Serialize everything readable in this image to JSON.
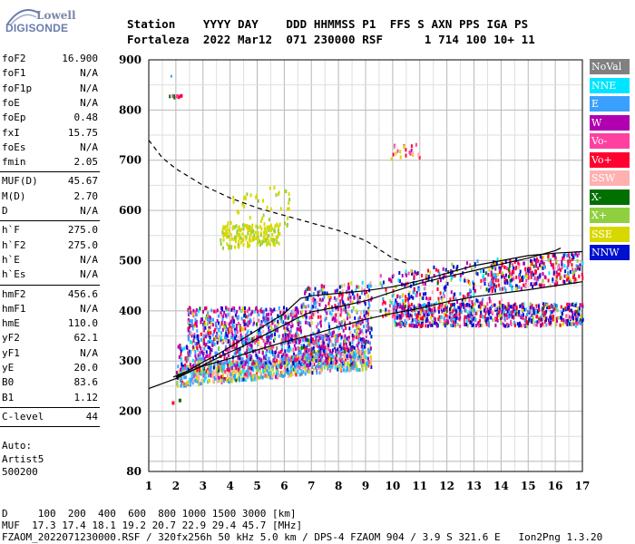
{
  "logo": {
    "line1": "Lowell",
    "line2": "DIGISONDE"
  },
  "header": {
    "line1": "Station    YYYY DAY    DDD HHMMSS P1  FFS S AXN PPS IGA PS",
    "line2": "Fortaleza  2022 Mar12  071 230000 RSF      1 714 100 10+ 11"
  },
  "params": {
    "group1": [
      {
        "label": "foF2",
        "value": "16.900"
      },
      {
        "label": "foF1",
        "value": "N/A"
      },
      {
        "label": "foF1p",
        "value": "N/A"
      },
      {
        "label": "foE",
        "value": "N/A"
      },
      {
        "label": "foEp",
        "value": "0.48"
      },
      {
        "label": "fxI",
        "value": "15.75"
      },
      {
        "label": "foEs",
        "value": "N/A"
      },
      {
        "label": "fmin",
        "value": "2.05"
      }
    ],
    "group2": [
      {
        "label": "MUF(D)",
        "value": "45.67"
      },
      {
        "label": "M(D)",
        "value": "2.70"
      },
      {
        "label": "D",
        "value": "N/A"
      }
    ],
    "group3": [
      {
        "label": "h`F",
        "value": "275.0"
      },
      {
        "label": "h`F2",
        "value": "275.0"
      },
      {
        "label": "h`E",
        "value": "N/A"
      },
      {
        "label": "h`Es",
        "value": "N/A"
      }
    ],
    "group4": [
      {
        "label": "hmF2",
        "value": "456.6"
      },
      {
        "label": "hmF1",
        "value": "N/A"
      },
      {
        "label": "hmE",
        "value": "110.0"
      },
      {
        "label": "yF2",
        "value": "62.1"
      },
      {
        "label": "yF1",
        "value": "N/A"
      },
      {
        "label": "yE",
        "value": "20.0"
      },
      {
        "label": "B0",
        "value": "83.6"
      },
      {
        "label": "B1",
        "value": "1.12"
      }
    ],
    "group5": [
      {
        "label": "C-level",
        "value": "44"
      }
    ]
  },
  "auto": {
    "line1": "Auto:",
    "line2": "Artist5",
    "line3": "500200"
  },
  "legend": [
    {
      "label": "NoVal",
      "color": "#808080"
    },
    {
      "label": "NNE",
      "color": "#00e5ff"
    },
    {
      "label": "E",
      "color": "#3aa0ff"
    },
    {
      "label": "W",
      "color": "#b000b0"
    },
    {
      "label": "Vo-",
      "color": "#ff40a0"
    },
    {
      "label": "Vo+",
      "color": "#ff0030"
    },
    {
      "label": "SSW",
      "color": "#ffb0b0"
    },
    {
      "label": "X-",
      "color": "#007000"
    },
    {
      "label": "X+",
      "color": "#90d040"
    },
    {
      "label": "SSE",
      "color": "#d8d800"
    },
    {
      "label": "NNW",
      "color": "#0010d0"
    }
  ],
  "bottom": {
    "line1": "D     100  200  400  600  800 1000 1500 3000 [km]",
    "line2": "MUF  17.3 17.4 18.1 19.2 20.7 22.9 29.4 45.7 [MHz]",
    "line3": "FZAOM_2022071230000.RSF / 320fx256h 50 kHz 5.0 km / DPS-4 FZAOM 904 / 3.9 S 321.6 E   Ion2Png 1.3.20"
  },
  "chart_data": {
    "type": "scatter",
    "title": "",
    "xlabel": "",
    "ylabel": "",
    "xlim": [
      1,
      17
    ],
    "ylim": [
      80,
      900
    ],
    "x_ticks": [
      1,
      2,
      3,
      4,
      5,
      6,
      7,
      8,
      9,
      10,
      11,
      12,
      13,
      14,
      15,
      16,
      17
    ],
    "y_ticks": [
      80,
      200,
      300,
      400,
      500,
      600,
      700,
      800,
      900
    ],
    "grid": true,
    "series": [
      {
        "name": "",
        "kind": "dashed-line",
        "color": "#000000",
        "x": [
          1.0,
          1.5,
          2.0,
          3.0,
          4.0,
          5.0,
          6.0,
          7.0,
          8.0,
          9.0,
          10.0,
          10.5
        ],
        "y": [
          740,
          705,
          683,
          650,
          625,
          605,
          590,
          575,
          560,
          540,
          505,
          495
        ]
      },
      {
        "name": "",
        "kind": "line",
        "color": "#000000",
        "x": [
          1.0,
          1.5,
          2.0,
          2.5,
          3.0,
          3.5,
          4.0,
          4.5,
          5.0,
          5.5,
          6.0,
          6.5,
          7.0,
          8.0,
          9.0,
          10.0,
          11.0,
          12.0,
          13.0,
          14.0,
          15.0,
          16.0,
          16.2
        ],
        "y": [
          245,
          255,
          265,
          278,
          292,
          305,
          318,
          330,
          345,
          358,
          372,
          386,
          398,
          408,
          420,
          438,
          455,
          468,
          480,
          493,
          505,
          520,
          525
        ]
      },
      {
        "name": "",
        "kind": "line",
        "color": "#000000",
        "x": [
          1.9,
          2.5,
          3.0,
          3.5,
          4.0,
          4.5,
          5.0,
          5.5,
          6.0,
          6.3,
          6.6,
          7.0,
          8.0,
          9.0,
          10.0,
          11.0,
          12.0,
          13.0,
          14.0,
          15.0,
          16.0,
          17.0
        ],
        "y": [
          268,
          282,
          298,
          312,
          328,
          345,
          362,
          378,
          395,
          410,
          425,
          430,
          435,
          440,
          448,
          460,
          475,
          490,
          500,
          510,
          515,
          518
        ]
      },
      {
        "name": "",
        "kind": "line",
        "color": "#000000",
        "x": [
          2.0,
          3.0,
          4.0,
          5.0,
          6.0,
          7.0,
          8.0,
          9.0,
          10.0,
          11.0,
          12.0,
          13.0,
          14.0,
          15.0,
          16.0,
          17.0
        ],
        "y": [
          268,
          290,
          305,
          322,
          338,
          352,
          368,
          383,
          395,
          405,
          418,
          428,
          435,
          442,
          450,
          458
        ]
      }
    ]
  }
}
